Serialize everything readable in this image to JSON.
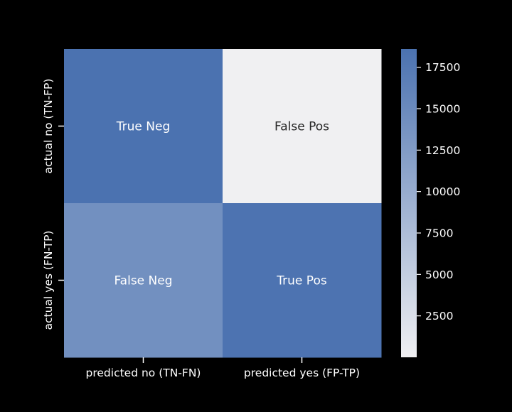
{
  "chart_data": {
    "type": "heatmap",
    "title": "",
    "xlabel": "",
    "ylabel": "",
    "x_tick_labels": [
      "predicted no (TN-FN)",
      "predicted yes (FP-TP)"
    ],
    "y_tick_labels": [
      "actual no (TN-FP)",
      "actual yes (FN-TP)"
    ],
    "cell_labels": [
      [
        "True Neg",
        "False Pos"
      ],
      [
        "False Neg",
        "True Pos"
      ]
    ],
    "values": [
      [
        18600,
        0
      ],
      [
        14200,
        18400
      ]
    ],
    "colorbar": {
      "range": [
        0,
        18600
      ],
      "ticks": [
        2500,
        5000,
        7500,
        10000,
        12500,
        15000,
        17500
      ],
      "tick_labels": [
        "2500",
        "5000",
        "7500",
        "10000",
        "12500",
        "15000",
        "17500"
      ],
      "color_low": "#f0f0f2",
      "color_high": "#4b72b0"
    },
    "grid": false,
    "background": "#000000",
    "text_color": "#ffffff"
  }
}
